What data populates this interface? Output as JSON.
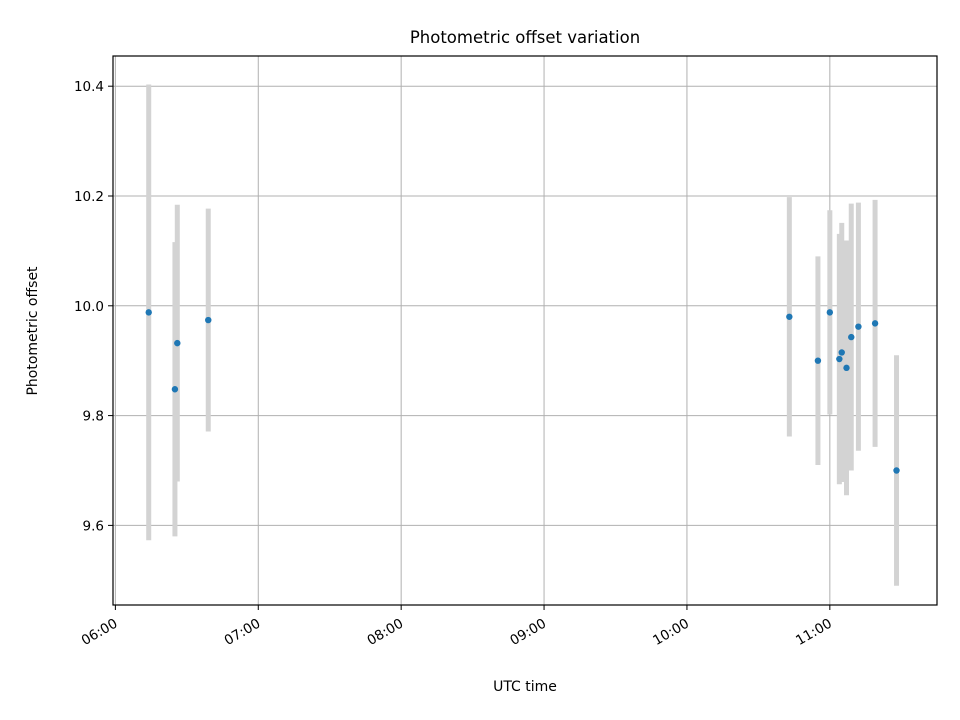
{
  "chart_data": {
    "type": "scatter",
    "title": "Photometric offset variation",
    "xlabel": "UTC time",
    "ylabel": "Photometric offset",
    "x_tick_labels": [
      "06:00",
      "07:00",
      "08:00",
      "09:00",
      "10:00",
      "11:00"
    ],
    "y_tick_labels": [
      "9.6",
      "9.8",
      "10.0",
      "10.2",
      "10.4"
    ],
    "xlim": [
      "05:59",
      "11:45"
    ],
    "ylim": [
      9.455,
      10.455
    ],
    "grid": true,
    "colors": {
      "points": "#1f77b4",
      "error_bars": "#d3d3d3",
      "grid": "#b0b0b0"
    },
    "points": [
      {
        "x": "06:14",
        "y": 9.988,
        "yerr": 0.415
      },
      {
        "x": "06:25",
        "y": 9.848,
        "yerr": 0.268
      },
      {
        "x": "06:26",
        "y": 9.932,
        "yerr": 0.252
      },
      {
        "x": "06:39",
        "y": 9.974,
        "yerr": 0.203
      },
      {
        "x": "10:43",
        "y": 9.98,
        "yerr": 0.218
      },
      {
        "x": "10:55",
        "y": 9.9,
        "yerr": 0.19
      },
      {
        "x": "11:00",
        "y": 9.988,
        "yerr": 0.186
      },
      {
        "x": "11:04",
        "y": 9.903,
        "yerr": 0.228
      },
      {
        "x": "11:05",
        "y": 9.915,
        "yerr": 0.236
      },
      {
        "x": "11:07",
        "y": 9.887,
        "yerr": 0.232
      },
      {
        "x": "11:09",
        "y": 9.943,
        "yerr": 0.243
      },
      {
        "x": "11:12",
        "y": 9.962,
        "yerr": 0.226
      },
      {
        "x": "11:19",
        "y": 9.968,
        "yerr": 0.225
      },
      {
        "x": "11:28",
        "y": 9.7,
        "yerr": 0.21
      }
    ]
  }
}
